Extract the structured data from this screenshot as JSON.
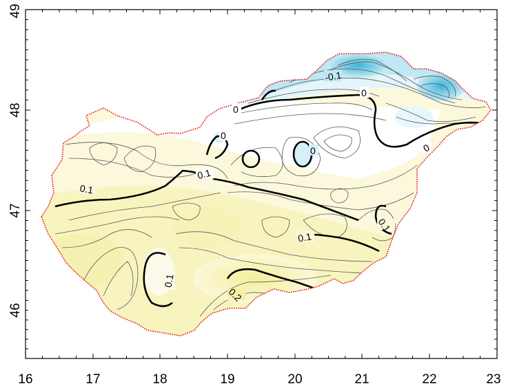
{
  "map": {
    "x_ticks": [
      "16",
      "17",
      "18",
      "19",
      "20",
      "21",
      "22",
      "23"
    ],
    "y_ticks": [
      "49",
      "48",
      "47",
      "46"
    ],
    "contour_labels": [
      "0",
      "0",
      "0",
      "0",
      "0",
      "-0.1",
      "0.1",
      "0.1",
      "0.1",
      "0.1",
      "0.1",
      "0.2"
    ],
    "colors": {
      "border": "#e01010",
      "negative_fill": "#3fb4d8",
      "zero_fill": "#ffffff",
      "positive_fill": "#f7f3b4",
      "contour_line": "#000000"
    }
  }
}
